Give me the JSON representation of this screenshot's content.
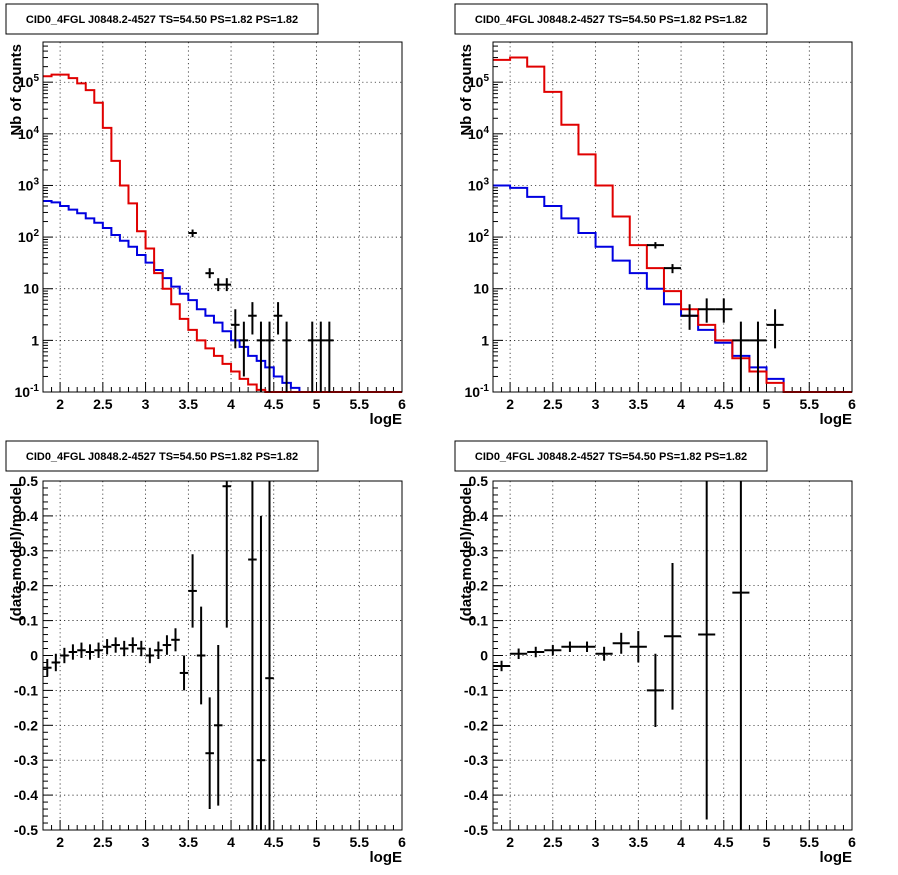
{
  "chart_data": [
    {
      "type": "line",
      "title": "CID0_4FGL J0848.2-4527 TS=54.50 PS=1.82 PS=1.82",
      "xlabel": "logE",
      "ylabel": "Nb of counts",
      "yscale": "log",
      "xlim": [
        1.8,
        6
      ],
      "ylim": [
        0.1,
        600000
      ],
      "grid": true,
      "xticks": [
        "2",
        "2.5",
        "3",
        "3.5",
        "4",
        "4.5",
        "5",
        "5.5",
        "6"
      ],
      "yticks": [
        "10^-1",
        "1",
        "10",
        "10^2",
        "10^3",
        "10^4",
        "10^5"
      ],
      "bin_width": 0.1,
      "bin_edges_start": 1.8,
      "model_total": {
        "color": "#e00000",
        "values": [
          130000,
          140000,
          140000,
          120000,
          95000,
          70000,
          40000,
          13000,
          3000,
          1000,
          450,
          130,
          60,
          20,
          10,
          5,
          2.6,
          1.6,
          1.0,
          0.7,
          0.5,
          0.35,
          0.25,
          0.18,
          0.14,
          0.11,
          0.1,
          0.1,
          0.1,
          0.1,
          0.1,
          0.1,
          0.1,
          0.1,
          0.1,
          0.1,
          0.1,
          0.1,
          0.1,
          0.1,
          0.1,
          0.1
        ]
      },
      "model_component": {
        "color": "#0000e0",
        "values": [
          500,
          470,
          400,
          340,
          290,
          230,
          190,
          150,
          110,
          85,
          65,
          45,
          32,
          23,
          16,
          11,
          8,
          6,
          4,
          3,
          2.2,
          1.5,
          1.0,
          0.75,
          0.5,
          0.4,
          0.3,
          0.2,
          0.15,
          0.12,
          0.1,
          0.1,
          0.1,
          0.1,
          0.1,
          0.1,
          0.1,
          0.1,
          0.1,
          0.1,
          0.1,
          0.1
        ]
      },
      "data_points": [
        {
          "x": 3.55,
          "y": 120,
          "xerr": 0.05,
          "ylo": 100,
          "yhi": 140
        },
        {
          "x": 3.75,
          "y": 20,
          "xerr": 0.05,
          "ylo": 16,
          "yhi": 25
        },
        {
          "x": 3.85,
          "y": 12,
          "xerr": 0.05,
          "ylo": 9,
          "yhi": 16
        },
        {
          "x": 3.95,
          "y": 12,
          "xerr": 0.05,
          "ylo": 9,
          "yhi": 16
        },
        {
          "x": 4.05,
          "y": 2,
          "xerr": 0.05,
          "ylo": 0.7,
          "yhi": 4
        },
        {
          "x": 4.15,
          "y": 1,
          "xerr": 0.05,
          "ylo": 0.2,
          "yhi": 2.3
        },
        {
          "x": 4.25,
          "y": 3,
          "xerr": 0.05,
          "ylo": 1.3,
          "yhi": 5.5
        },
        {
          "x": 4.35,
          "y": 1,
          "xerr": 0.05,
          "ylo": 0.1,
          "yhi": 2.3
        },
        {
          "x": 4.45,
          "y": 1,
          "xerr": 0.05,
          "ylo": 0.1,
          "yhi": 2.3
        },
        {
          "x": 4.55,
          "y": 3,
          "xerr": 0.05,
          "ylo": 1.3,
          "yhi": 5.5
        },
        {
          "x": 4.65,
          "y": 1,
          "xerr": 0.05,
          "ylo": 0.1,
          "yhi": 2.3
        },
        {
          "x": 4.95,
          "y": 1,
          "xerr": 0.05,
          "ylo": 0.1,
          "yhi": 2.3
        },
        {
          "x": 5.05,
          "y": 1,
          "xerr": 0.05,
          "ylo": 0.1,
          "yhi": 2.3
        },
        {
          "x": 5.15,
          "y": 1,
          "xerr": 0.05,
          "ylo": 0.1,
          "yhi": 2.3
        }
      ]
    },
    {
      "type": "line",
      "title": "CID0_4FGL J0848.2-4527 TS=54.50 PS=1.82 PS=1.82",
      "xlabel": "logE",
      "ylabel": "Nb of counts",
      "yscale": "log",
      "xlim": [
        1.8,
        6
      ],
      "ylim": [
        0.1,
        600000
      ],
      "grid": true,
      "xticks": [
        "2",
        "2.5",
        "3",
        "3.5",
        "4",
        "4.5",
        "5",
        "5.5",
        "6"
      ],
      "yticks": [
        "10^-1",
        "1",
        "10",
        "10^2",
        "10^3",
        "10^4",
        "10^5"
      ],
      "bin_width": 0.2,
      "bin_edges_start": 1.8,
      "model_total": {
        "color": "#e00000",
        "values": [
          270000,
          300000,
          200000,
          65000,
          15000,
          4000,
          1000,
          250,
          70,
          25,
          9,
          4,
          2,
          1,
          0.45,
          0.25,
          0.15,
          0.1,
          0.1,
          0.1,
          0.1
        ]
      },
      "model_component": {
        "color": "#0000e0",
        "values": [
          1000,
          900,
          600,
          400,
          230,
          120,
          65,
          35,
          20,
          10,
          5,
          3,
          1.6,
          0.9,
          0.5,
          0.3,
          0.18,
          0.1,
          0.1,
          0.1,
          0.1
        ]
      },
      "data_points": [
        {
          "x": 3.7,
          "y": 70,
          "xerr": 0.1,
          "ylo": 60,
          "yhi": 80
        },
        {
          "x": 3.9,
          "y": 25,
          "xerr": 0.1,
          "ylo": 20,
          "yhi": 30
        },
        {
          "x": 4.1,
          "y": 3,
          "xerr": 0.1,
          "ylo": 1.6,
          "yhi": 5
        },
        {
          "x": 4.3,
          "y": 4,
          "xerr": 0.1,
          "ylo": 2.2,
          "yhi": 6.5
        },
        {
          "x": 4.5,
          "y": 4,
          "xerr": 0.1,
          "ylo": 2.2,
          "yhi": 6.5
        },
        {
          "x": 4.7,
          "y": 1,
          "xerr": 0.1,
          "ylo": 0.1,
          "yhi": 2.3
        },
        {
          "x": 4.9,
          "y": 1,
          "xerr": 0.1,
          "ylo": 0.1,
          "yhi": 2.3
        },
        {
          "x": 5.1,
          "y": 2,
          "xerr": 0.1,
          "ylo": 0.7,
          "yhi": 4
        }
      ]
    },
    {
      "type": "scatter",
      "title": "CID0_4FGL J0848.2-4527 TS=54.50 PS=1.82 PS=1.82",
      "xlabel": "logE",
      "ylabel": "(data-model)/model",
      "xlim": [
        1.8,
        6
      ],
      "ylim": [
        -0.5,
        0.5
      ],
      "grid": true,
      "xticks": [
        "2",
        "2.5",
        "3",
        "3.5",
        "4",
        "4.5",
        "5",
        "5.5",
        "6"
      ],
      "yticks": [
        "-0.5",
        "-0.4",
        "-0.3",
        "-0.2",
        "-0.1",
        "0",
        "0.1",
        "0.2",
        "0.3",
        "0.4",
        "0.5"
      ],
      "points": [
        {
          "x": 1.85,
          "y": -0.035,
          "xerr": 0.05,
          "ylo": -0.06,
          "yhi": -0.01
        },
        {
          "x": 1.95,
          "y": -0.02,
          "xerr": 0.05,
          "ylo": -0.045,
          "yhi": 0.005
        },
        {
          "x": 2.05,
          "y": 0.0,
          "xerr": 0.05,
          "ylo": -0.022,
          "yhi": 0.022
        },
        {
          "x": 2.15,
          "y": 0.01,
          "xerr": 0.05,
          "ylo": -0.012,
          "yhi": 0.032
        },
        {
          "x": 2.25,
          "y": 0.015,
          "xerr": 0.05,
          "ylo": -0.007,
          "yhi": 0.037
        },
        {
          "x": 2.35,
          "y": 0.01,
          "xerr": 0.05,
          "ylo": -0.012,
          "yhi": 0.032
        },
        {
          "x": 2.45,
          "y": 0.015,
          "xerr": 0.05,
          "ylo": -0.007,
          "yhi": 0.037
        },
        {
          "x": 2.55,
          "y": 0.025,
          "xerr": 0.05,
          "ylo": 0.003,
          "yhi": 0.047
        },
        {
          "x": 2.65,
          "y": 0.03,
          "xerr": 0.05,
          "ylo": 0.008,
          "yhi": 0.052
        },
        {
          "x": 2.75,
          "y": 0.02,
          "xerr": 0.05,
          "ylo": -0.002,
          "yhi": 0.042
        },
        {
          "x": 2.85,
          "y": 0.03,
          "xerr": 0.05,
          "ylo": 0.008,
          "yhi": 0.052
        },
        {
          "x": 2.95,
          "y": 0.02,
          "xerr": 0.05,
          "ylo": -0.002,
          "yhi": 0.042
        },
        {
          "x": 3.05,
          "y": 0.0,
          "xerr": 0.05,
          "ylo": -0.022,
          "yhi": 0.022
        },
        {
          "x": 3.15,
          "y": 0.015,
          "xerr": 0.05,
          "ylo": -0.01,
          "yhi": 0.04
        },
        {
          "x": 3.25,
          "y": 0.03,
          "xerr": 0.05,
          "ylo": 0.002,
          "yhi": 0.058
        },
        {
          "x": 3.35,
          "y": 0.045,
          "xerr": 0.05,
          "ylo": 0.012,
          "yhi": 0.078
        },
        {
          "x": 3.45,
          "y": -0.05,
          "xerr": 0.05,
          "ylo": -0.1,
          "yhi": 0.0
        },
        {
          "x": 3.55,
          "y": 0.185,
          "xerr": 0.05,
          "ylo": 0.08,
          "yhi": 0.29
        },
        {
          "x": 3.65,
          "y": 0.0,
          "xerr": 0.05,
          "ylo": -0.14,
          "yhi": 0.14
        },
        {
          "x": 3.75,
          "y": -0.28,
          "xerr": 0.05,
          "ylo": -0.44,
          "yhi": -0.12
        },
        {
          "x": 3.85,
          "y": -0.2,
          "xerr": 0.05,
          "ylo": -0.43,
          "yhi": 0.03
        },
        {
          "x": 3.95,
          "y": 0.485,
          "xerr": 0.05,
          "ylo": 0.08,
          "yhi": 0.89
        },
        {
          "x": 4.25,
          "y": 0.275,
          "xerr": 0.05,
          "ylo": -0.5,
          "yhi": 0.5
        },
        {
          "x": 4.35,
          "y": -0.3,
          "xerr": 0.05,
          "ylo": -0.5,
          "yhi": 0.4
        },
        {
          "x": 4.45,
          "y": -0.065,
          "xerr": 0.05,
          "ylo": -0.5,
          "yhi": 0.5
        }
      ]
    },
    {
      "type": "scatter",
      "title": "CID0_4FGL J0848.2-4527 TS=54.50 PS=1.82 PS=1.82",
      "xlabel": "logE",
      "ylabel": "(data-model)/model",
      "xlim": [
        1.8,
        6
      ],
      "ylim": [
        -0.5,
        0.5
      ],
      "grid": true,
      "xticks": [
        "2",
        "2.5",
        "3",
        "3.5",
        "4",
        "4.5",
        "5",
        "5.5",
        "6"
      ],
      "yticks": [
        "-0.5",
        "-0.4",
        "-0.3",
        "-0.2",
        "-0.1",
        "0",
        "0.1",
        "0.2",
        "0.3",
        "0.4",
        "0.5"
      ],
      "points": [
        {
          "x": 1.9,
          "y": -0.03,
          "xerr": 0.1,
          "ylo": -0.045,
          "yhi": -0.015
        },
        {
          "x": 2.1,
          "y": 0.005,
          "xerr": 0.1,
          "ylo": -0.01,
          "yhi": 0.02
        },
        {
          "x": 2.3,
          "y": 0.01,
          "xerr": 0.1,
          "ylo": -0.005,
          "yhi": 0.025
        },
        {
          "x": 2.5,
          "y": 0.015,
          "xerr": 0.1,
          "ylo": 0.0,
          "yhi": 0.03
        },
        {
          "x": 2.7,
          "y": 0.025,
          "xerr": 0.1,
          "ylo": 0.01,
          "yhi": 0.04
        },
        {
          "x": 2.9,
          "y": 0.025,
          "xerr": 0.1,
          "ylo": 0.01,
          "yhi": 0.04
        },
        {
          "x": 3.1,
          "y": 0.005,
          "xerr": 0.1,
          "ylo": -0.015,
          "yhi": 0.025
        },
        {
          "x": 3.3,
          "y": 0.035,
          "xerr": 0.1,
          "ylo": 0.005,
          "yhi": 0.065
        },
        {
          "x": 3.5,
          "y": 0.025,
          "xerr": 0.1,
          "ylo": -0.02,
          "yhi": 0.07
        },
        {
          "x": 3.7,
          "y": -0.1,
          "xerr": 0.1,
          "ylo": -0.205,
          "yhi": 0.005
        },
        {
          "x": 3.9,
          "y": 0.055,
          "xerr": 0.1,
          "ylo": -0.155,
          "yhi": 0.265
        },
        {
          "x": 4.3,
          "y": 0.06,
          "xerr": 0.1,
          "ylo": -0.47,
          "yhi": 0.5
        },
        {
          "x": 4.7,
          "y": 0.18,
          "xerr": 0.1,
          "ylo": -0.5,
          "yhi": 0.5
        }
      ]
    }
  ]
}
